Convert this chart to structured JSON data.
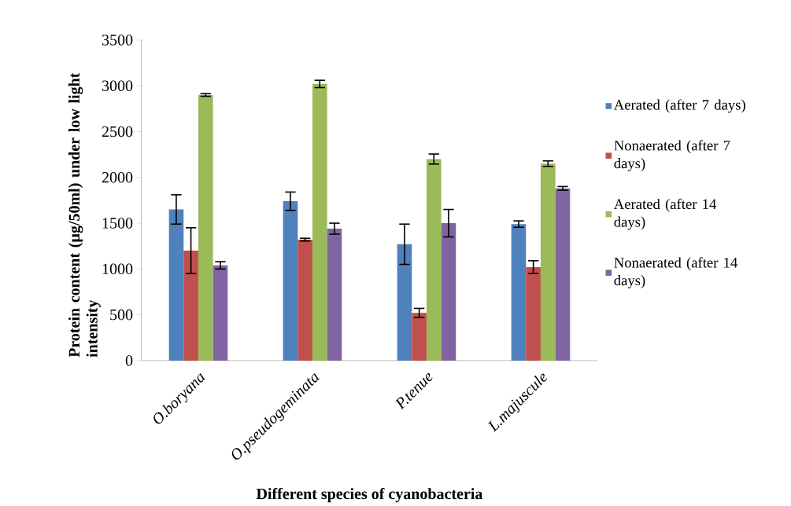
{
  "chart_data": {
    "type": "bar",
    "xlabel": "Different species of cyanobacteria",
    "ylabel": "Protein content (µg/50ml) under low light intensity",
    "categories": [
      "O.boryana",
      "O.pseudogeminata",
      "P.tenue",
      "L.majuscule"
    ],
    "series": [
      {
        "name": "Aerated (after 7 days)",
        "color": "#4f81bd",
        "values": [
          1650,
          1740,
          1270,
          1490
        ],
        "errors": [
          160,
          100,
          220,
          35
        ]
      },
      {
        "name": "Nonaerated (after 7 days)",
        "color": "#c0504d",
        "values": [
          1200,
          1320,
          520,
          1020
        ],
        "errors": [
          250,
          15,
          50,
          70
        ]
      },
      {
        "name": "Aerated (after 14 days)",
        "color": "#9bbb59",
        "values": [
          2900,
          3020,
          2200,
          2150
        ],
        "errors": [
          15,
          40,
          55,
          30
        ]
      },
      {
        "name": "Nonaerated (after 14 days)",
        "color": "#8064a2",
        "values": [
          1040,
          1440,
          1500,
          1880
        ],
        "errors": [
          40,
          60,
          150,
          20
        ]
      }
    ],
    "ylim": [
      0,
      3500
    ],
    "yticks": [
      0,
      500,
      1000,
      1500,
      2000,
      2500,
      3000,
      3500
    ],
    "legend": "right"
  }
}
